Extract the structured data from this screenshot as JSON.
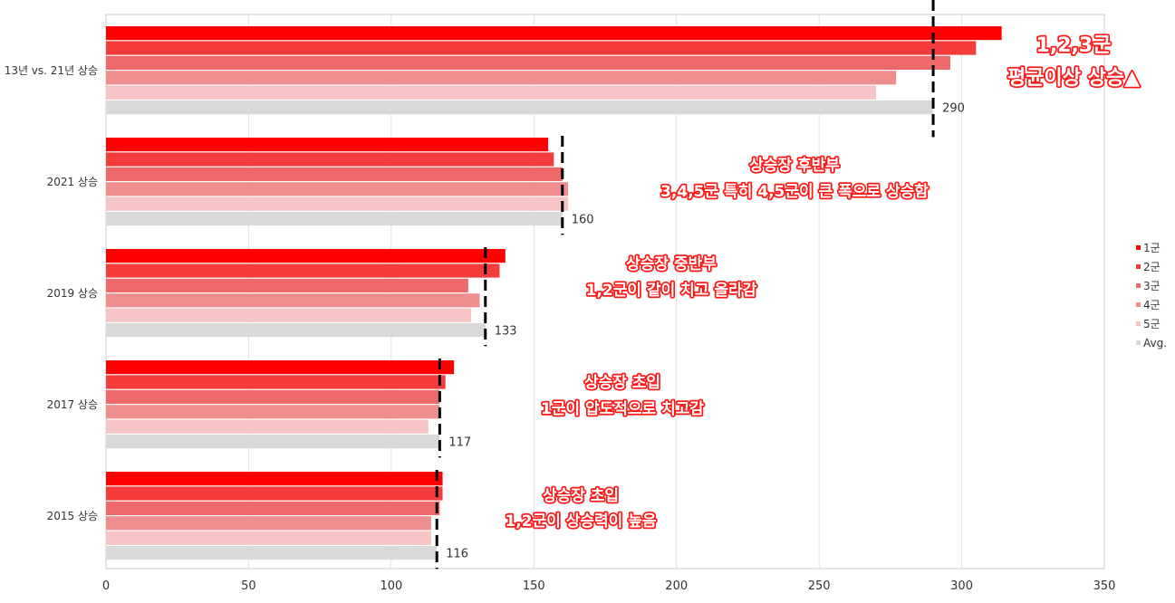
{
  "chart_data": {
    "type": "bar",
    "orientation": "horizontal",
    "categories": [
      "13년 vs. 21년 상승",
      "2021 상승",
      "2019 상승",
      "2017 상승",
      "2015 상승"
    ],
    "series": [
      {
        "name": "1군",
        "color": "#ff0000",
        "values": [
          314,
          155,
          140,
          122,
          118
        ]
      },
      {
        "name": "2군",
        "color": "#f43c3c",
        "values": [
          305,
          157,
          138,
          119,
          118
        ]
      },
      {
        "name": "3군",
        "color": "#ee6a6a",
        "values": [
          296,
          160,
          127,
          117,
          117
        ]
      },
      {
        "name": "4군",
        "color": "#ef8e8e",
        "values": [
          277,
          162,
          131,
          117,
          114
        ]
      },
      {
        "name": "5군",
        "color": "#f6c4c4",
        "values": [
          270,
          162,
          128,
          113,
          114
        ]
      },
      {
        "name": "Avg.",
        "color": "#d9d9d9",
        "values": [
          290,
          160,
          133,
          117,
          116
        ]
      }
    ],
    "avg_labels": [
      "290",
      "160",
      "133",
      "117",
      "116"
    ],
    "xlim": [
      0,
      350
    ],
    "x_ticks": [
      0,
      50,
      100,
      150,
      200,
      250,
      300,
      350
    ],
    "grid": true,
    "legend_position": "right",
    "annotations": [
      {
        "lines": [
          "1,2,3군",
          "평균이상 상승▲"
        ],
        "category": "13년 vs. 21년 상승"
      },
      {
        "lines": [
          "상승장 후반부",
          "3,4,5군 특히 4,5군이 큰 폭으로 상승함"
        ],
        "category": "2021 상승"
      },
      {
        "lines": [
          "상승장 중반부",
          "1,2군이 같이 치고 올라감"
        ],
        "category": "2019 상승"
      },
      {
        "lines": [
          "상승장 초입",
          "1군이 압도적으로 치고감"
        ],
        "category": "2017 상승"
      },
      {
        "lines": [
          "상승장 초입",
          "1,2군이 상승력이 높음"
        ],
        "category": "2015 상승"
      }
    ]
  }
}
